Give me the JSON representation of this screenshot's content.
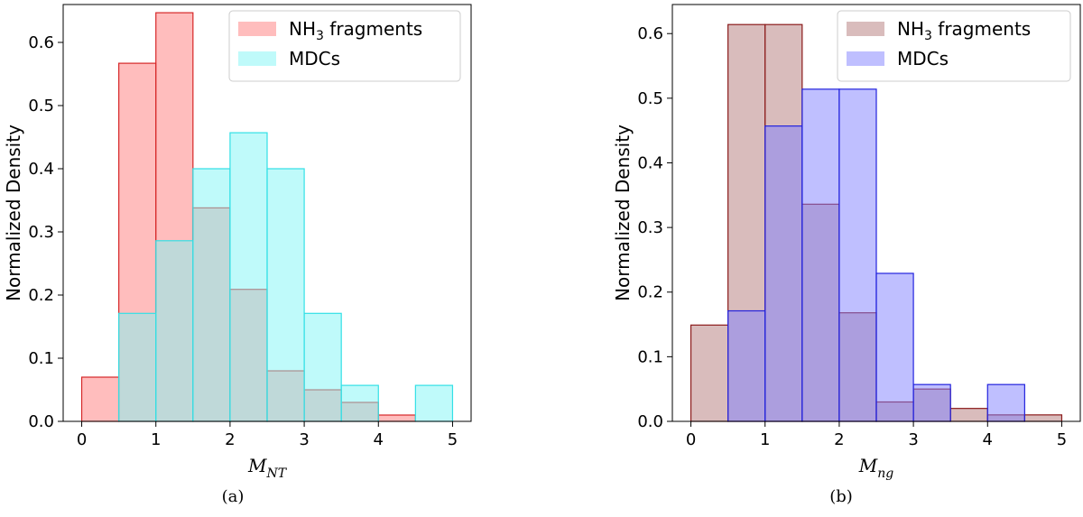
{
  "chart_data": [
    {
      "type": "bar",
      "caption": "(a)",
      "ylabel": "Normalized Density",
      "xlabel": {
        "symbol": "M",
        "subscript": "NT"
      },
      "xlim": [
        -0.25,
        5.25
      ],
      "ylim": [
        0,
        0.66
      ],
      "xticks": [
        0,
        1,
        2,
        3,
        4,
        5
      ],
      "yticks": [
        0.0,
        0.1,
        0.2,
        0.3,
        0.4,
        0.5,
        0.6
      ],
      "legend_position": "top-right",
      "series": [
        {
          "name": "NH3 fragments",
          "name_base": "NH",
          "name_sub": "3",
          "name_rest": " fragments",
          "fill": "#ff9999",
          "fill_opacity": 0.65,
          "edge": "#d62728",
          "bins": [
            [
              0,
              0.5
            ],
            [
              0.5,
              1
            ],
            [
              1,
              1.5
            ],
            [
              1.5,
              2
            ],
            [
              2,
              2.5
            ],
            [
              2.5,
              3
            ],
            [
              3,
              3.5
            ],
            [
              3.5,
              4
            ],
            [
              4,
              4.5
            ],
            [
              4.5,
              5
            ]
          ],
          "values": [
            0.07,
            0.567,
            0.647,
            0.338,
            0.209,
            0.08,
            0.05,
            0.03,
            0.01,
            0.0
          ]
        },
        {
          "name": "MDCs",
          "fill": "#7ff5f5",
          "fill_opacity": 0.5,
          "edge": "#33e0e6",
          "bins": [
            [
              0,
              0.5
            ],
            [
              0.5,
              1
            ],
            [
              1,
              1.5
            ],
            [
              1.5,
              2
            ],
            [
              2,
              2.5
            ],
            [
              2.5,
              3
            ],
            [
              3,
              3.5
            ],
            [
              3.5,
              4
            ],
            [
              4,
              4.5
            ],
            [
              4.5,
              5
            ]
          ],
          "values": [
            0.0,
            0.171,
            0.286,
            0.4,
            0.457,
            0.4,
            0.171,
            0.057,
            0.0,
            0.057
          ]
        }
      ]
    },
    {
      "type": "bar",
      "caption": "(b)",
      "ylabel": "Normalized Density",
      "xlabel": {
        "symbol": "M",
        "subscript": "ng"
      },
      "xlim": [
        -0.25,
        5.25
      ],
      "ylim": [
        0,
        0.645
      ],
      "xticks": [
        0,
        1,
        2,
        3,
        4,
        5
      ],
      "yticks": [
        0.0,
        0.1,
        0.2,
        0.3,
        0.4,
        0.5,
        0.6
      ],
      "legend_position": "top-right",
      "series": [
        {
          "name": "NH3 fragments",
          "name_base": "NH",
          "name_sub": "3",
          "name_rest": " fragments",
          "fill": "#c9a0a0",
          "fill_opacity": 0.7,
          "edge": "#8b1a1a",
          "bins": [
            [
              0,
              0.5
            ],
            [
              0.5,
              1
            ],
            [
              1,
              1.5
            ],
            [
              1.5,
              2
            ],
            [
              2,
              2.5
            ],
            [
              2.5,
              3
            ],
            [
              3,
              3.5
            ],
            [
              3.5,
              4
            ],
            [
              4,
              4.5
            ],
            [
              4.5,
              5
            ]
          ],
          "values": [
            0.149,
            0.614,
            0.614,
            0.336,
            0.168,
            0.03,
            0.05,
            0.02,
            0.01,
            0.01
          ]
        },
        {
          "name": "MDCs",
          "fill": "#8080ff",
          "fill_opacity": 0.5,
          "edge": "#2222dd",
          "bins": [
            [
              0,
              0.5
            ],
            [
              0.5,
              1
            ],
            [
              1,
              1.5
            ],
            [
              1.5,
              2
            ],
            [
              2,
              2.5
            ],
            [
              2.5,
              3
            ],
            [
              3,
              3.5
            ],
            [
              3.5,
              4
            ],
            [
              4,
              4.5
            ],
            [
              4.5,
              5
            ]
          ],
          "values": [
            0.0,
            0.171,
            0.457,
            0.514,
            0.514,
            0.229,
            0.057,
            0.0,
            0.057,
            0.0
          ]
        }
      ]
    }
  ]
}
